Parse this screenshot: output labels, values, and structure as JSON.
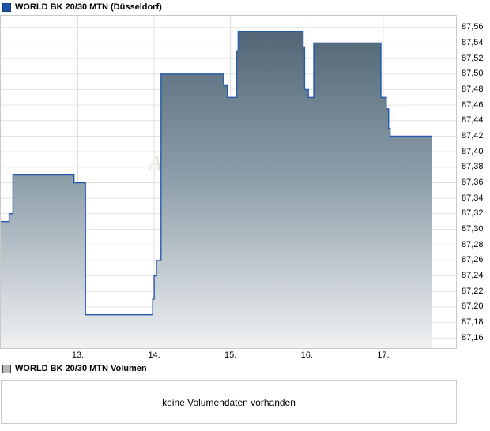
{
  "header": {
    "title": "WORLD BK 20/30 MTN (Düsseldorf)"
  },
  "volume_panel": {
    "title": "WORLD BK 20/30 MTN Volumen",
    "message": "keine Volumendaten vorhanden"
  },
  "colors": {
    "price_line": "#2458ac",
    "area_top": "#4b6071",
    "area_mid": "#8fa0ab",
    "area_bottom": "#f0f1f2",
    "grid": "#e3e3e3",
    "vgrid": "#dedede",
    "border": "#c9c9c9",
    "legend_price": "#1c52a8",
    "legend_volume": "#b6b8bb",
    "watermark": "#e9e4dc"
  },
  "chart_data": {
    "type": "area",
    "step": true,
    "title": "WORLD BK 20/30 MTN (Düsseldorf)",
    "xlabel": "",
    "ylabel": "",
    "grid": true,
    "legend_position": "top-left",
    "x_tick_labels": [
      "13.",
      "14.",
      "15.",
      "16.",
      "17."
    ],
    "x_tick_days": [
      13,
      14,
      15,
      16,
      17
    ],
    "y_tick_labels": [
      "87,56",
      "87,54",
      "87,52",
      "87,50",
      "87,48",
      "87,46",
      "87,44",
      "87,42",
      "87,40",
      "87,38",
      "87,36",
      "87,34",
      "87,32",
      "87,30",
      "87,28",
      "87,26",
      "87,24",
      "87,22",
      "87,20",
      "87,18",
      "87,16"
    ],
    "y_tick_values": [
      87.56,
      87.54,
      87.52,
      87.5,
      87.48,
      87.46,
      87.44,
      87.42,
      87.4,
      87.38,
      87.36,
      87.34,
      87.32,
      87.3,
      87.28,
      87.26,
      87.24,
      87.22,
      87.2,
      87.18,
      87.16
    ],
    "ylim": [
      87.146,
      87.576
    ],
    "xlim_days": [
      11.98,
      17.96
    ],
    "series": [
      {
        "name": "WORLD BK 20/30 MTN",
        "note": "step series: [day, price]; price holds until next step; last value holds to end_day",
        "steps": [
          [
            11.98,
            87.31
          ],
          [
            12.1,
            87.32
          ],
          [
            12.15,
            87.37
          ],
          [
            12.95,
            87.36
          ],
          [
            13.1,
            87.19
          ],
          [
            13.98,
            87.21
          ],
          [
            14.0,
            87.24
          ],
          [
            14.03,
            87.26
          ],
          [
            14.09,
            87.5
          ],
          [
            14.91,
            87.485
          ],
          [
            14.96,
            87.47
          ],
          [
            15.08,
            87.53
          ],
          [
            15.1,
            87.555
          ],
          [
            15.95,
            87.535
          ],
          [
            15.97,
            87.48
          ],
          [
            16.02,
            87.47
          ],
          [
            16.09,
            87.54
          ],
          [
            16.97,
            87.47
          ],
          [
            17.04,
            87.455
          ],
          [
            17.07,
            87.43
          ],
          [
            17.09,
            87.42
          ]
        ],
        "end_day": 17.64,
        "last_price": 87.42,
        "high": 87.555,
        "low": 87.19
      }
    ],
    "watermark_text": "A"
  }
}
